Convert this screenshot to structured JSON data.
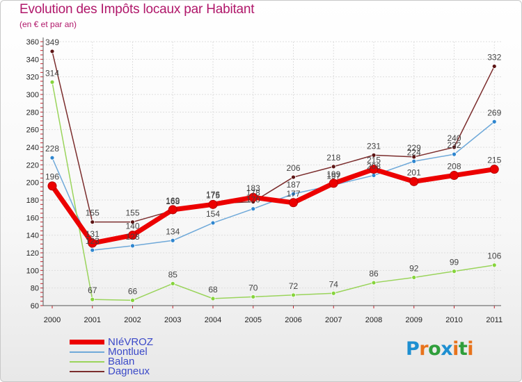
{
  "title": "Evolution des Impôts locaux par Habitant",
  "subtitle": "(en € et par an)",
  "logo": {
    "text": "Proxiti",
    "letters": [
      "P",
      "r",
      "o",
      "x",
      "i",
      "t",
      "i"
    ],
    "colors": [
      "#1e8fd1",
      "#e8731c",
      "#2f9e3b",
      "#1e8fd1",
      "#e8731c",
      "#2f9e3b",
      "#e8731c"
    ]
  },
  "chart_data": {
    "type": "line",
    "categories": [
      "2000",
      "2001",
      "2002",
      "2003",
      "2004",
      "2005",
      "2006",
      "2007",
      "2008",
      "2009",
      "2010",
      "2011"
    ],
    "ylim": [
      60,
      360
    ],
    "yticks": [
      60,
      80,
      100,
      120,
      140,
      160,
      180,
      200,
      220,
      240,
      260,
      280,
      300,
      320,
      340,
      360
    ],
    "grid": true,
    "series": [
      {
        "name": "NIéVROZ",
        "color": "#ec0000",
        "width": 7,
        "point_color": "#ec0000",
        "values": [
          196,
          131,
          140,
          169,
          175,
          183,
          177,
          199,
          215,
          201,
          208,
          215
        ]
      },
      {
        "name": "Montluel",
        "color": "#6fa9d9",
        "width": 1.5,
        "point_color": "#2f86cf",
        "values": [
          228,
          123,
          128,
          134,
          154,
          170,
          187,
          197,
          208,
          224,
          232,
          269
        ]
      },
      {
        "name": "Balan",
        "color": "#9ad45b",
        "width": 1.5,
        "point_color": "#86d43c",
        "values": [
          314,
          67,
          66,
          85,
          68,
          70,
          72,
          74,
          86,
          92,
          99,
          106
        ]
      },
      {
        "name": "Dagneux",
        "color": "#7b2d2d",
        "width": 1.5,
        "point_color": "#5c1414",
        "values": [
          349,
          155,
          155,
          168,
          176,
          178,
          206,
          218,
          231,
          229,
          240,
          332
        ]
      }
    ]
  }
}
